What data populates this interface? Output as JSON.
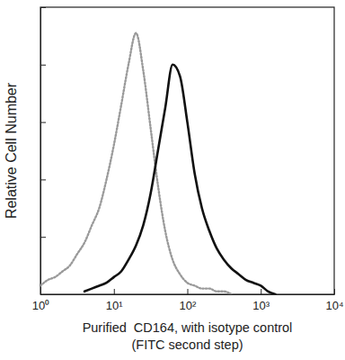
{
  "chart_data": {
    "type": "line",
    "ylabel": "Relative Cell Number",
    "xlabel": [
      "Purified  CD164, with isotype control",
      "(FITC second step)"
    ],
    "log": "x",
    "grid": false,
    "tick_labels": "x",
    "xlim": [
      1,
      10000
    ],
    "xticks": [
      {
        "value": 1,
        "label": "10⁰"
      },
      {
        "value": 10,
        "label": "10¹"
      },
      {
        "value": 100,
        "label": "10²"
      },
      {
        "value": 1000,
        "label": "10³"
      },
      {
        "value": 10000,
        "label": "10⁴"
      }
    ],
    "ylim": [
      0,
      100
    ],
    "yticks": [
      0,
      20,
      40,
      60,
      80,
      100
    ],
    "x": [
      1,
      1.26,
      1.58,
      2,
      2.51,
      3.16,
      3.98,
      5.01,
      6.31,
      7.94,
      10,
      12.6,
      15.8,
      20,
      25.1,
      31.6,
      39.8,
      50.1,
      63.1,
      79.4,
      100,
      126,
      158,
      200,
      251,
      316,
      398,
      501,
      631,
      794,
      1000,
      1260,
      1580
    ],
    "series": [
      {
        "color": "#9a9a9a",
        "line_style": "dotted",
        "values": [
          3,
          5,
          6,
          8,
          10,
          14,
          18,
          24,
          30,
          40,
          52,
          66,
          80,
          91,
          78,
          58,
          38,
          22,
          12,
          7,
          4,
          3,
          2,
          2,
          1,
          1,
          0,
          null,
          null,
          null,
          null,
          null,
          null
        ]
      },
      {
        "color": "#111111",
        "line_style": "solid",
        "values": [
          null,
          null,
          null,
          null,
          null,
          null,
          1,
          2,
          3,
          4,
          6,
          8,
          12,
          17,
          24,
          35,
          50,
          65,
          80,
          76,
          60,
          42,
          30,
          22,
          16,
          12,
          9,
          7,
          5,
          4,
          3,
          1,
          0
        ]
      }
    ]
  }
}
